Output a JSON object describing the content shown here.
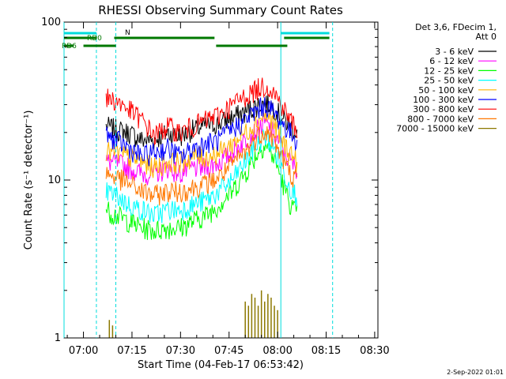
{
  "chart_data": {
    "type": "line",
    "title": "RHESSI Observing Summary Count Rates",
    "xlabel": "Start Time (04-Feb-17 06:53:42)",
    "ylabel": "Count Rate (s⁻¹ detector⁻¹)",
    "yscale": "log",
    "ylim": [
      1,
      100
    ],
    "xlim_minutes_after_0700": [
      -6,
      31
    ],
    "x_ticks": [
      "07:00",
      "07:15",
      "07:30",
      "07:45",
      "08:00",
      "08:15",
      "08:30"
    ],
    "y_ticks": [
      "1",
      "10",
      "100"
    ],
    "legend_header": [
      "Det 3,6, FDecim 1,",
      "Att 0"
    ],
    "legend_position": "right",
    "timestamp": "2-Sep-2022 01:01",
    "flag_labels": {
      "n": "N",
      "rd0": "RD0",
      "rd6": "RD6"
    },
    "flag_colors": {
      "night": "#00dcdc",
      "rd": "#007800"
    },
    "flags": {
      "night": [
        [
          -6,
          4
        ],
        [
          61,
          76
        ]
      ],
      "rd0": [
        [
          -6,
          4
        ],
        [
          9.5,
          40.5
        ],
        [
          62,
          76
        ]
      ],
      "rd6": [
        [
          -6,
          -3
        ],
        [
          0,
          10
        ],
        [
          41,
          63
        ]
      ]
    },
    "markers": {
      "solid": [
        -6,
        61
      ],
      "dashed": [
        4,
        10,
        77
      ]
    },
    "series": [
      {
        "name": "3 - 6 keV",
        "color": "#000000",
        "t": [
          7,
          10,
          14,
          18,
          22,
          26,
          30,
          34,
          38,
          42,
          46,
          50,
          54,
          56,
          58,
          60,
          62,
          64,
          66
        ],
        "y": [
          22,
          21,
          20,
          18,
          18,
          20,
          19,
          21,
          22,
          23,
          25,
          27,
          30,
          31,
          30,
          27,
          24,
          22,
          20
        ]
      },
      {
        "name": "6 - 12 keV",
        "color": "#ff00ff",
        "t": [
          7,
          10,
          14,
          18,
          22,
          26,
          30,
          34,
          38,
          42,
          46,
          50,
          54,
          56,
          58,
          60,
          62,
          64,
          66
        ],
        "y": [
          13,
          13,
          12,
          11,
          11,
          12,
          11,
          12,
          12,
          13,
          15,
          18,
          21,
          23,
          21,
          18,
          15,
          13,
          12
        ]
      },
      {
        "name": "12 - 25 keV",
        "color": "#00ff00",
        "t": [
          7,
          10,
          14,
          18,
          22,
          26,
          30,
          34,
          38,
          42,
          46,
          50,
          54,
          56,
          58,
          60,
          62,
          64,
          66
        ],
        "y": [
          6.5,
          6,
          5.5,
          5,
          4.8,
          5,
          5,
          5.5,
          6,
          7,
          8.5,
          11,
          15,
          17,
          15,
          12,
          9,
          7,
          6
        ]
      },
      {
        "name": "25 - 50 keV",
        "color": "#00ffff",
        "t": [
          7,
          10,
          14,
          18,
          22,
          26,
          30,
          34,
          38,
          42,
          46,
          50,
          54,
          56,
          58,
          60,
          62,
          64,
          66
        ],
        "y": [
          8.5,
          8,
          7,
          6.5,
          6,
          6.5,
          6.5,
          7,
          7.5,
          8.5,
          10,
          13,
          17,
          19,
          17,
          14,
          11,
          9,
          8
        ]
      },
      {
        "name": "50 - 100 keV",
        "color": "#ffb400",
        "t": [
          7,
          10,
          14,
          18,
          22,
          26,
          30,
          34,
          38,
          42,
          46,
          50,
          54,
          56,
          58,
          60,
          62,
          64,
          66
        ],
        "y": [
          15,
          15,
          14,
          13,
          12,
          13,
          13,
          14,
          14,
          15,
          17,
          20,
          24,
          26,
          24,
          20,
          17,
          15,
          13
        ]
      },
      {
        "name": "100 - 300 keV",
        "color": "#0000ff",
        "t": [
          7,
          10,
          14,
          18,
          22,
          26,
          30,
          34,
          38,
          42,
          46,
          50,
          54,
          56,
          58,
          60,
          62,
          64,
          66
        ],
        "y": [
          19,
          18,
          16,
          14,
          15,
          16,
          14,
          16,
          17,
          18,
          21,
          24,
          28,
          30,
          28,
          25,
          22,
          20,
          18
        ]
      },
      {
        "name": "300 - 800 keV",
        "color": "#ff0000",
        "t": [
          7,
          10,
          14,
          18,
          22,
          26,
          30,
          34,
          38,
          42,
          46,
          50,
          54,
          56,
          58,
          60,
          62,
          64,
          66
        ],
        "y": [
          33,
          32,
          28,
          24,
          19,
          22,
          20,
          22,
          24,
          26,
          30,
          34,
          38,
          40,
          38,
          33,
          28,
          24,
          21
        ]
      },
      {
        "name": "800 - 7000 keV",
        "color": "#ff7800",
        "t": [
          7,
          10,
          14,
          18,
          22,
          26,
          30,
          34,
          38,
          42,
          46,
          50,
          54,
          56,
          58,
          60,
          62,
          64,
          66
        ],
        "y": [
          11,
          10.5,
          9.5,
          8.5,
          8,
          8.5,
          8.5,
          9,
          9.5,
          10.5,
          12.5,
          15,
          19,
          21,
          19,
          16,
          13,
          11,
          10
        ]
      },
      {
        "name": "7000 - 15000 keV",
        "color": "#8c7800",
        "t": [
          8,
          9,
          50,
          51,
          52,
          53,
          54,
          55,
          56,
          57,
          58,
          59,
          60
        ],
        "y": [
          1.3,
          1.2,
          1.7,
          1.6,
          1.9,
          1.8,
          1.6,
          2.0,
          1.7,
          1.9,
          1.8,
          1.6,
          1.5
        ]
      }
    ]
  }
}
